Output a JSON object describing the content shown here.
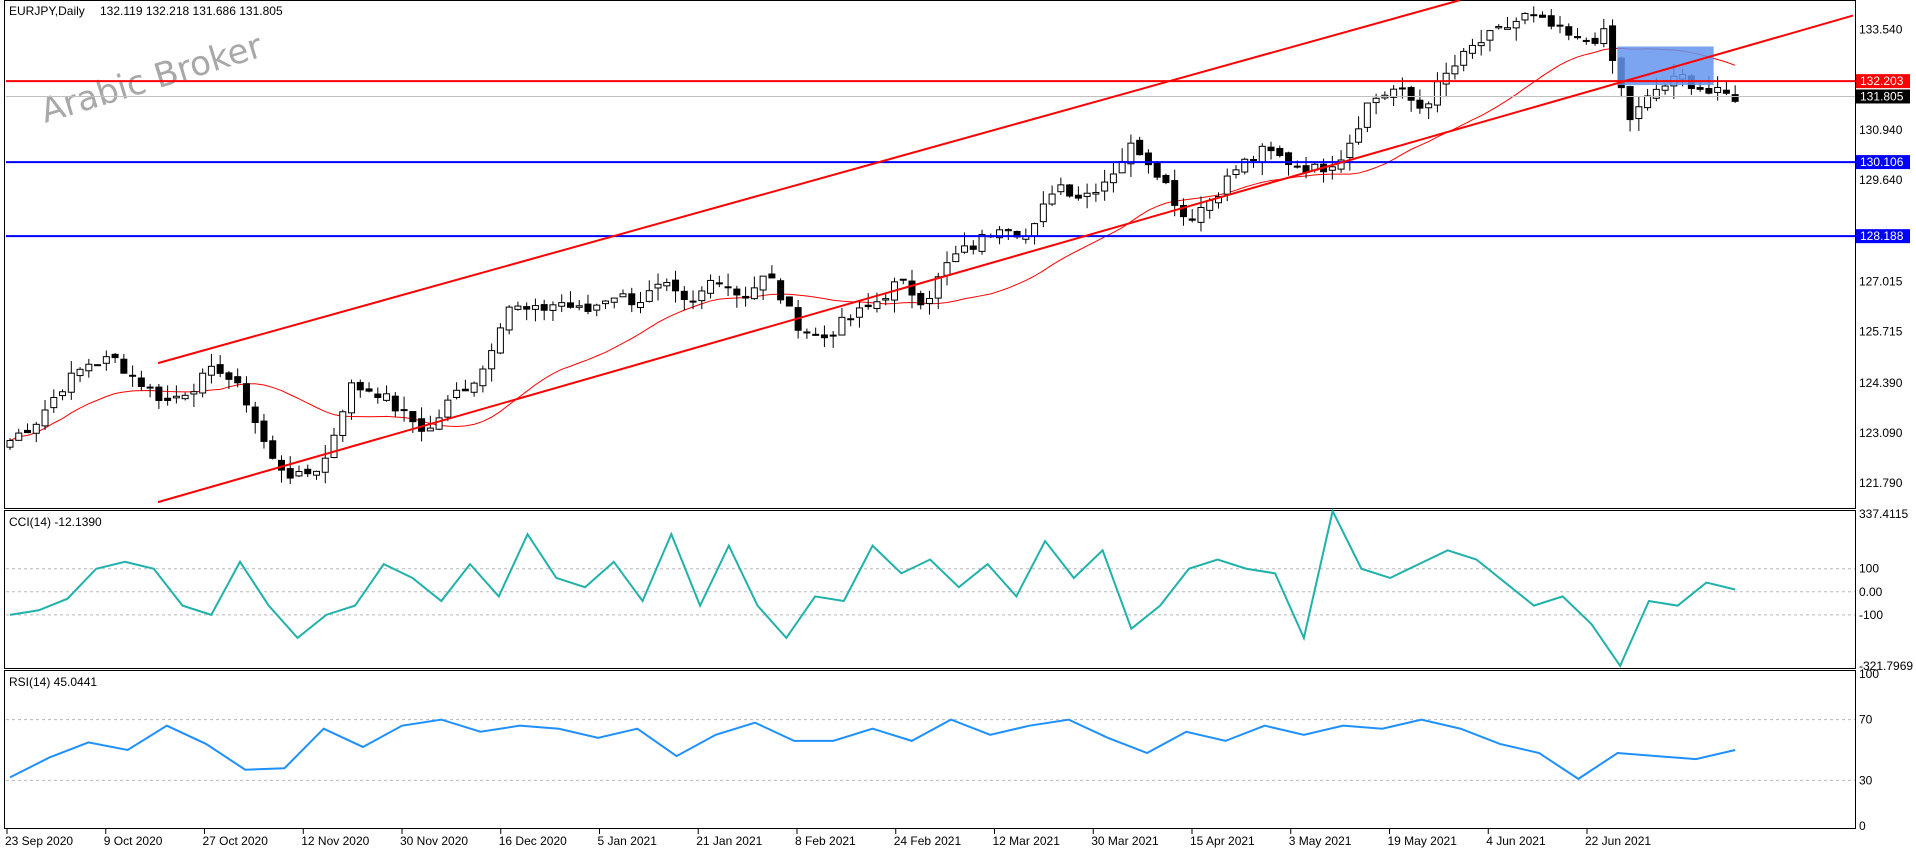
{
  "header": {
    "symbol": "EURJPY,Daily",
    "ohlc": "132.119 132.218 131.686 131.805"
  },
  "watermark": "Arabic Broker",
  "price_panel": {
    "ticks": [
      "133.540",
      "130.940",
      "129.640",
      "127.015",
      "125.715",
      "124.390",
      "123.090",
      "121.790"
    ],
    "tags": [
      {
        "label": "132.203",
        "bg": "#ff0000",
        "fg": "#ffffff"
      },
      {
        "label": "131.805",
        "bg": "#000000",
        "fg": "#ffffff"
      },
      {
        "label": "130.106",
        "bg": "#0000ff",
        "fg": "#ffffff"
      },
      {
        "label": "128.188",
        "bg": "#0000ff",
        "fg": "#ffffff"
      }
    ]
  },
  "cci_panel": {
    "label": "CCI(14) -12.1390",
    "ticks": [
      "337.4115",
      "100",
      "0.00",
      "-100",
      "-321.7969"
    ]
  },
  "rsi_panel": {
    "label": "RSI(14) 45.0441",
    "ticks": [
      "100",
      "70",
      "30",
      "0"
    ]
  },
  "time_axis": [
    "23 Sep 2020",
    "9 Oct 2020",
    "27 Oct 2020",
    "12 Nov 2020",
    "30 Nov 2020",
    "16 Dec 2020",
    "5 Jan 2021",
    "21 Jan 2021",
    "8 Feb 2021",
    "24 Feb 2021",
    "12 Mar 2021",
    "30 Mar 2021",
    "15 Apr 2021",
    "3 May 2021",
    "19 May 2021",
    "4 Jun 2021",
    "22 Jun 2021"
  ],
  "colors": {
    "up_candle": "#ffffff",
    "down_candle": "#000000",
    "channel": "#ff0000",
    "support": "#0000ff",
    "resistance": "#ff0000",
    "ma": "#ff0000",
    "cci": "#20b2aa",
    "rsi": "#1e90ff",
    "zone": "#6495ed"
  },
  "chart_data": {
    "type": "candlestick",
    "title": "EURJPY,Daily",
    "indicators": [
      "CCI(14)",
      "RSI(14)"
    ],
    "ylim": [
      121.2,
      134.2
    ],
    "horizontal_levels": [
      132.203,
      130.106,
      128.188
    ],
    "current_price": 131.805,
    "x_start_label": "23 Sep 2020",
    "x_end_label": "22 Jun 2021",
    "series": [
      {
        "name": "price_waypoints",
        "values": [
          122.9,
          123.4,
          124.3,
          124.9,
          125.0,
          124.4,
          123.9,
          124.3,
          124.8,
          124.0,
          122.4,
          121.9,
          122.3,
          124.3,
          124.2,
          123.6,
          123.1,
          124.1,
          124.6,
          126.4,
          126.2,
          126.5,
          126.2,
          126.7,
          126.5,
          126.9,
          126.3,
          127.2,
          126.6,
          127.2,
          126.0,
          125.5,
          126.0,
          126.4,
          127.0,
          126.5,
          127.6,
          128.0,
          128.6,
          128.1,
          129.6,
          129.2,
          129.7,
          130.6,
          129.8,
          128.6,
          129.2,
          130.0,
          130.4,
          130.1,
          129.9,
          130.3,
          131.7,
          132.0,
          131.5,
          132.4,
          133.1,
          133.5,
          133.9,
          133.6,
          133.2,
          133.4,
          131.2,
          132.0,
          132.3,
          131.9,
          131.8
        ]
      },
      {
        "name": "cci_waypoints",
        "values": [
          -100,
          -80,
          -30,
          100,
          130,
          100,
          -60,
          -100,
          130,
          -60,
          -200,
          -100,
          -60,
          120,
          60,
          -40,
          120,
          -20,
          250,
          60,
          20,
          130,
          -40,
          250,
          -60,
          200,
          -60,
          -200,
          -20,
          -40,
          200,
          80,
          140,
          20,
          120,
          -20,
          220,
          60,
          180,
          -160,
          -60,
          100,
          140,
          100,
          80,
          -200,
          350,
          100,
          60,
          120,
          180,
          140,
          40,
          -60,
          -20,
          -140,
          -321,
          -40,
          -60,
          40,
          10
        ]
      },
      {
        "name": "rsi_waypoints",
        "values": [
          32,
          45,
          55,
          50,
          66,
          54,
          37,
          38,
          64,
          52,
          66,
          70,
          62,
          66,
          64,
          58,
          64,
          46,
          60,
          68,
          56,
          56,
          64,
          56,
          70,
          60,
          66,
          70,
          58,
          48,
          62,
          56,
          66,
          60,
          66,
          64,
          70,
          64,
          54,
          48,
          31,
          48,
          46,
          44,
          50
        ]
      }
    ]
  }
}
